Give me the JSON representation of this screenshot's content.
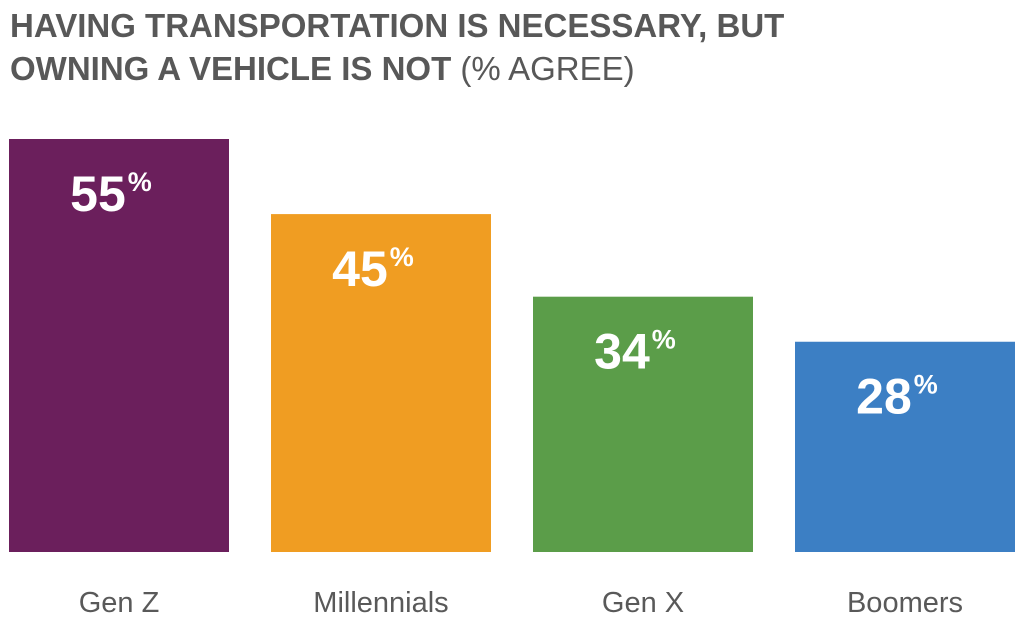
{
  "chart_data": {
    "type": "bar",
    "title_line1": "HAVING TRANSPORTATION IS NECESSARY, BUT",
    "title_line2": "OWNING A VEHICLE IS NOT",
    "title_suffix": "(% AGREE)",
    "categories": [
      "Gen Z",
      "Millennials",
      "Gen X",
      "Boomers"
    ],
    "values": [
      55,
      45,
      34,
      28
    ],
    "value_labels": [
      "55",
      "45",
      "34",
      "28"
    ],
    "value_suffix": "%",
    "colors": [
      "#6b1f5c",
      "#f09d22",
      "#5b9d49",
      "#3c7fc4"
    ],
    "ylim": [
      0,
      55
    ],
    "grid": false,
    "legend": "none"
  }
}
